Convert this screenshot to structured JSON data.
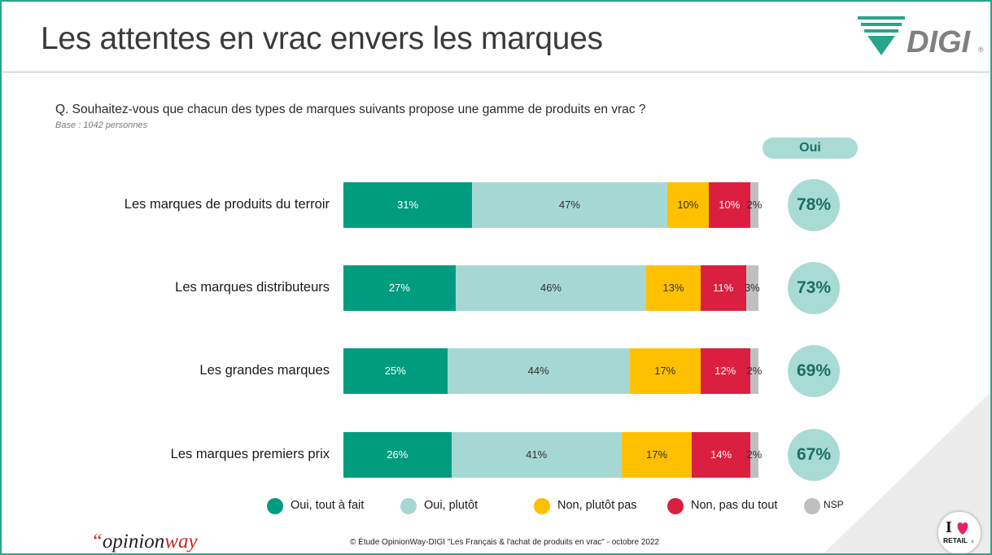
{
  "title": "Les attentes en vrac envers les marques",
  "brand_logo": {
    "text": "DIGI",
    "registered": "®",
    "color": "#2aa58c"
  },
  "question": "Q. Souhaitez-vous que chacun des types de marques suivants propose une gamme de produits en vrac ?",
  "base": "Base : 1042 personnes",
  "oui_header": "Oui",
  "chart_data": {
    "type": "bar",
    "orientation": "horizontal",
    "stacked": true,
    "percent_scale": true,
    "categories": [
      "Les marques de produits du terroir",
      "Les marques distributeurs",
      "Les grandes marques",
      "Les marques premiers prix"
    ],
    "series": [
      {
        "name": "Oui, tout à fait",
        "color": "#009c7f",
        "text_color": "#ffffff",
        "values": [
          31,
          27,
          25,
          26
        ],
        "labels": [
          "31%",
          "27%",
          "25%",
          "26%"
        ]
      },
      {
        "name": "Oui, plutôt",
        "color": "#a6d8d3",
        "text_color": "#2f2f2f",
        "values": [
          47,
          46,
          44,
          41
        ],
        "labels": [
          "47%",
          "46%",
          "44%",
          "41%"
        ]
      },
      {
        "name": "Non, plutôt pas",
        "color": "#ffc000",
        "text_color": "#2f2f2f",
        "values": [
          10,
          13,
          17,
          17
        ],
        "labels": [
          "10%",
          "13%",
          "17%",
          "17%"
        ]
      },
      {
        "name": "Non, pas du tout",
        "color": "#db1f40",
        "text_color": "#ffffff",
        "values": [
          10,
          11,
          12,
          14
        ],
        "labels": [
          "10%",
          "11%",
          "12%",
          "14%"
        ]
      },
      {
        "name": "NSP",
        "color": "#bfbfbf",
        "text_color": "#2f2f2f",
        "values": [
          2,
          3,
          2,
          2
        ],
        "labels": [
          "2%",
          "3%",
          "2%",
          "2%"
        ]
      }
    ],
    "totals": {
      "name": "Oui",
      "values": [
        78,
        73,
        69,
        67
      ],
      "labels": [
        "78%",
        "73%",
        "69%",
        "67%"
      ]
    },
    "legend_position": "bottom"
  },
  "source_brand": {
    "quote": "“",
    "opinion": "opinion",
    "way": "way"
  },
  "footnote": "© Étude OpinionWay-DIGI \"Les Français & l'achat de produits en vrac\" - octobre 2022",
  "retail_badge": {
    "i": "I",
    "text": "RETAIL",
    "suffix": "fr"
  }
}
